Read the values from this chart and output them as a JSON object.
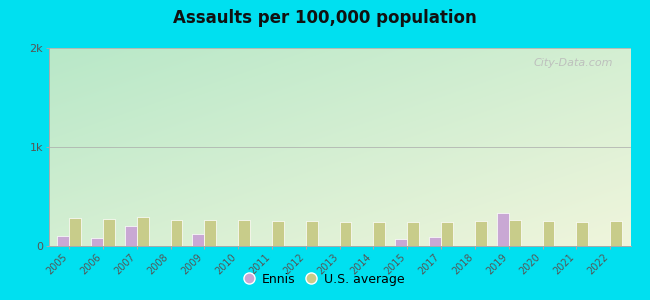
{
  "title": "Assaults per 100,000 population",
  "years": [
    2005,
    2006,
    2007,
    2008,
    2009,
    2010,
    2011,
    2012,
    2013,
    2014,
    2015,
    2017,
    2018,
    2019,
    2020,
    2021,
    2022
  ],
  "ennis_values": [
    100,
    80,
    200,
    0,
    120,
    0,
    0,
    0,
    0,
    0,
    70,
    90,
    0,
    330,
    0,
    0,
    0
  ],
  "us_values": [
    280,
    270,
    290,
    265,
    265,
    260,
    255,
    250,
    245,
    245,
    245,
    240,
    250,
    265,
    255,
    245,
    255
  ],
  "ennis_color": "#c9a8d4",
  "us_color": "#c8cc8a",
  "bar_edge_color": "#ffffff",
  "bg_outer": "#00e0f0",
  "ylim": [
    0,
    2000
  ],
  "yticks": [
    0,
    1000,
    2000
  ],
  "ytick_labels": [
    "0",
    "1k",
    "2k"
  ],
  "watermark": "City-Data.com",
  "legend_ennis": "Ennis",
  "legend_us": "U.S. average",
  "grad_top_left": "#b8e8c8",
  "grad_bottom_right": "#f0f5dc"
}
